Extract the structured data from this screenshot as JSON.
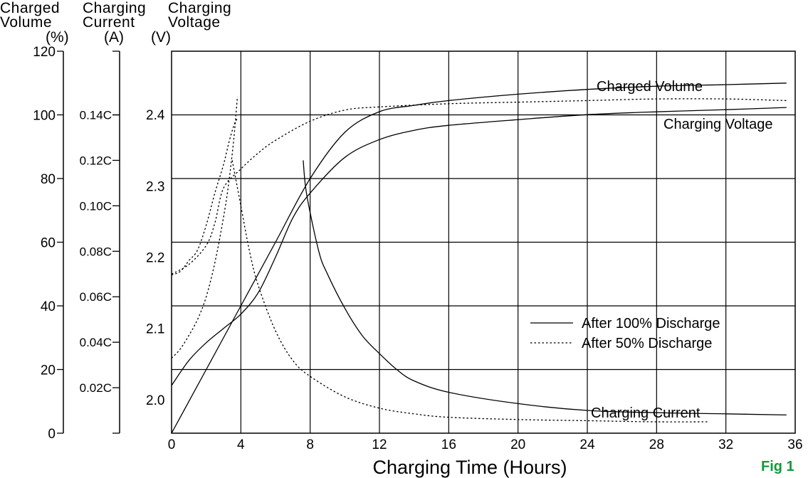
{
  "fig_label": "Fig 1",
  "colors": {
    "ink": "#000000",
    "grid": "#000000",
    "fig_label": "#139a3a",
    "background": "#ffffff"
  },
  "chart_data": {
    "type": "line",
    "xlabel": "Charging Time (Hours)",
    "xlim": [
      0,
      36
    ],
    "x_ticks": [
      0,
      4,
      8,
      12,
      16,
      20,
      24,
      28,
      32,
      36
    ],
    "axes": {
      "charged_volume": {
        "header_line1": "Charged",
        "header_line2": "Volume",
        "unit": "(%)",
        "range": [
          0,
          120
        ],
        "ticks": [
          0,
          20,
          40,
          60,
          80,
          100,
          120
        ]
      },
      "charging_current": {
        "header_line1": "Charging",
        "header_line2": "Current",
        "unit": "(A)",
        "range": [
          0,
          0.168
        ],
        "ticks": [
          {
            "value": 0.14,
            "label": "0.14C"
          },
          {
            "value": 0.12,
            "label": "0.12C"
          },
          {
            "value": 0.1,
            "label": "0.10C"
          },
          {
            "value": 0.08,
            "label": "0.08C"
          },
          {
            "value": 0.06,
            "label": "0.06C"
          },
          {
            "value": 0.04,
            "label": "0.04C"
          },
          {
            "value": 0.02,
            "label": "0.02C"
          }
        ]
      },
      "charging_voltage": {
        "header_line1": "Charging",
        "header_line2": "Voltage",
        "unit": "(V)",
        "range": [
          1.953,
          2.489
        ],
        "ticks": [
          {
            "value": 2.0,
            "label": "2.0"
          },
          {
            "value": 2.1,
            "label": "2.1"
          },
          {
            "value": 2.2,
            "label": "2.2"
          },
          {
            "value": 2.3,
            "label": "2.3"
          },
          {
            "value": 2.4,
            "label": "2.4"
          }
        ]
      }
    },
    "annotations": [
      "Charged Volume",
      "Charging Voltage",
      "Charging Current"
    ],
    "legend": {
      "position": "right-middle",
      "entries": [
        {
          "label": "After 100% Discharge",
          "style": "solid"
        },
        {
          "label": "After 50% Discharge",
          "style": "dotted"
        }
      ]
    },
    "series": [
      {
        "quantity": "charged_volume",
        "condition": "100%",
        "style": "solid",
        "axis": "charged_volume",
        "x": [
          0,
          2,
          4,
          6,
          8,
          10,
          12,
          14,
          16,
          20,
          24,
          28,
          32,
          35.5
        ],
        "y": [
          0,
          20,
          40,
          60,
          80,
          94.5,
          101,
          103,
          104.5,
          106.5,
          108,
          109,
          109.5,
          110
        ]
      },
      {
        "quantity": "charging_voltage",
        "condition": "100%",
        "style": "solid",
        "axis": "charging_voltage",
        "x": [
          0,
          1,
          2,
          3,
          4,
          5,
          6,
          7,
          8,
          10,
          12,
          14,
          16,
          20,
          24,
          28,
          32,
          35.5
        ],
        "y": [
          2.02,
          2.055,
          2.08,
          2.1,
          2.12,
          2.15,
          2.2,
          2.255,
          2.29,
          2.34,
          2.365,
          2.378,
          2.385,
          2.393,
          2.4,
          2.404,
          2.407,
          2.41
        ]
      },
      {
        "quantity": "charging_current",
        "condition": "100%",
        "style": "solid",
        "axis": "charging_current",
        "x": [
          7.6,
          7.8,
          8.5,
          9,
          10,
          11,
          12,
          13,
          14,
          16,
          20,
          24,
          28,
          32,
          35.5
        ],
        "y": [
          0.12,
          0.105,
          0.08,
          0.07,
          0.055,
          0.043,
          0.035,
          0.028,
          0.023,
          0.018,
          0.013,
          0.01,
          0.009,
          0.0085,
          0.008
        ]
      },
      {
        "quantity": "charged_volume",
        "condition": "50%",
        "style": "dotted",
        "axis": "charged_volume",
        "x": [
          0,
          1,
          2,
          2.5,
          3,
          4,
          5,
          6,
          8,
          10,
          12,
          16,
          20,
          24,
          28,
          32,
          35.5
        ],
        "y": [
          50,
          53,
          59,
          66,
          77,
          83,
          88,
          92,
          98,
          101.5,
          102.5,
          103.5,
          104,
          104.5,
          105,
          105,
          104.5
        ]
      },
      {
        "quantity": "charging_voltage",
        "condition": "50%",
        "style": "dotted",
        "axis": "charging_voltage",
        "x": [
          0,
          0.5,
          1,
          1.5,
          2,
          2.5,
          3,
          3.3,
          3.6,
          3.8
        ],
        "y": [
          2.175,
          2.18,
          2.195,
          2.21,
          2.245,
          2.29,
          2.33,
          2.36,
          2.385,
          2.395
        ]
      },
      {
        "quantity": "charging_current",
        "condition": "50%",
        "style": "dotted",
        "axis": "charging_current",
        "x": [
          0,
          0.5,
          1,
          1.5,
          2,
          2.5,
          3,
          3.3,
          3.6,
          3.8
        ],
        "y": [
          0.033,
          0.037,
          0.043,
          0.05,
          0.06,
          0.075,
          0.095,
          0.11,
          0.13,
          0.148
        ]
      },
      {
        "quantity": "charging_current",
        "condition": "50%",
        "style": "dotted",
        "axis": "charging_current",
        "x": [
          3.5,
          4,
          4.5,
          5,
          6,
          7,
          8,
          10,
          12,
          14,
          16,
          20,
          24,
          28,
          31
        ],
        "y": [
          0.12,
          0.1,
          0.08,
          0.065,
          0.045,
          0.032,
          0.025,
          0.016,
          0.011,
          0.0085,
          0.007,
          0.006,
          0.0055,
          0.005,
          0.005
        ]
      }
    ]
  }
}
